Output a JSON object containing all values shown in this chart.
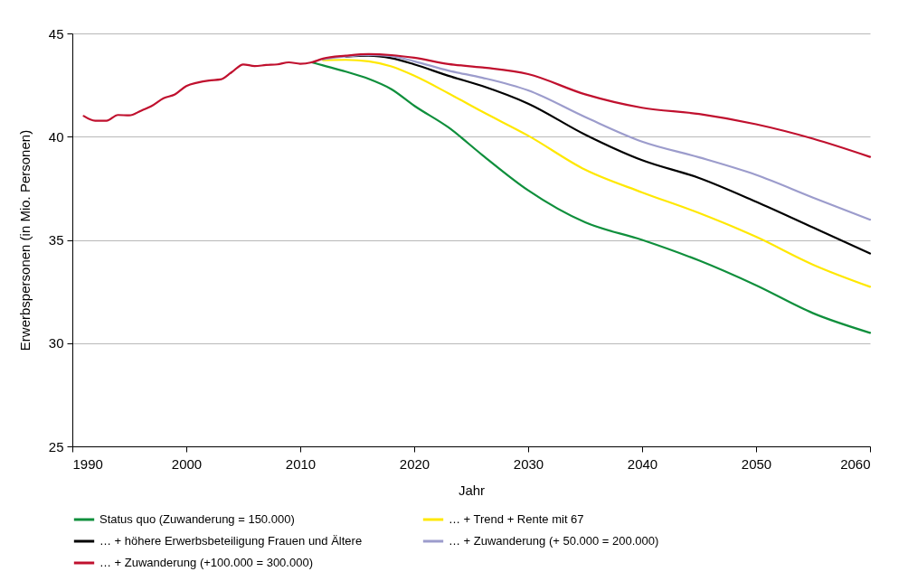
{
  "chart_data": {
    "type": "line",
    "xlabel": "Jahr",
    "ylabel": "Erwerbspersonen (in Mio. Personen)",
    "x": [
      1991,
      1992,
      1993,
      1994,
      1995,
      1996,
      1997,
      1998,
      1999,
      2000,
      2001,
      2002,
      2003,
      2004,
      2005,
      2006,
      2007,
      2008,
      2009,
      2010,
      2011,
      2012,
      2014,
      2016,
      2018,
      2020,
      2023,
      2026,
      2030,
      2035,
      2040,
      2045,
      2050,
      2055,
      2060
    ],
    "series": [
      {
        "name": "Status quo (Zuwanderung = 150.000)",
        "color": "#0f8f3c",
        "values": [
          null,
          null,
          null,
          null,
          null,
          null,
          null,
          null,
          null,
          null,
          null,
          null,
          null,
          null,
          null,
          null,
          null,
          null,
          null,
          null,
          43.6,
          43.45,
          43.15,
          42.8,
          42.3,
          41.5,
          40.45,
          39.1,
          37.4,
          35.85,
          35.0,
          34.0,
          32.8,
          31.45,
          30.5
        ]
      },
      {
        "name": "… + Trend + Rente mit 67",
        "color": "#ffe800",
        "values": [
          null,
          null,
          null,
          null,
          null,
          null,
          null,
          null,
          null,
          null,
          null,
          null,
          null,
          null,
          null,
          null,
          null,
          null,
          null,
          null,
          null,
          43.7,
          43.72,
          43.65,
          43.4,
          42.95,
          42.1,
          41.2,
          40.05,
          38.4,
          37.3,
          36.3,
          35.15,
          33.8,
          32.73
        ]
      },
      {
        "name": "… + höhere Erwerbsbeteiligung Frauen und Ältere",
        "color": "#000000",
        "values": [
          null,
          null,
          null,
          null,
          null,
          null,
          null,
          null,
          null,
          null,
          null,
          null,
          null,
          null,
          null,
          null,
          null,
          null,
          null,
          null,
          null,
          null,
          43.88,
          43.92,
          43.8,
          43.5,
          42.95,
          42.45,
          41.6,
          40.1,
          38.86,
          38.0,
          36.85,
          35.6,
          34.34
        ]
      },
      {
        "name": "… + Zuwanderung (+ 50.000 = 200.000)",
        "color": "#9c9ccc",
        "values": [
          null,
          null,
          null,
          null,
          null,
          null,
          null,
          null,
          null,
          null,
          null,
          null,
          null,
          null,
          null,
          null,
          null,
          null,
          null,
          null,
          null,
          43.75,
          null,
          43.95,
          43.9,
          43.65,
          43.2,
          42.85,
          42.24,
          40.95,
          39.76,
          39.0,
          38.15,
          37.05,
          35.98
        ]
      },
      {
        "name": "… + Zuwanderung (+100.000 = 300.000)",
        "color": "#c0102e",
        "values": [
          41.0,
          40.77,
          40.77,
          41.05,
          41.03,
          41.25,
          41.5,
          41.86,
          42.05,
          42.45,
          42.62,
          42.72,
          42.77,
          43.13,
          43.5,
          43.42,
          43.47,
          43.5,
          43.6,
          43.53,
          43.6,
          43.78,
          43.92,
          44.0,
          43.95,
          43.82,
          43.52,
          43.35,
          43.03,
          42.05,
          41.4,
          41.1,
          40.6,
          39.9,
          39.02
        ]
      }
    ],
    "xlim": [
      1990,
      2060
    ],
    "xticks": [
      1990,
      2000,
      2010,
      2020,
      2030,
      2040,
      2050,
      2060
    ],
    "ylim": [
      25,
      45
    ],
    "yticks": [
      25,
      30,
      35,
      40,
      45
    ],
    "grid": "y",
    "legend": "bottom",
    "marker": "none",
    "line_style": "solid"
  }
}
